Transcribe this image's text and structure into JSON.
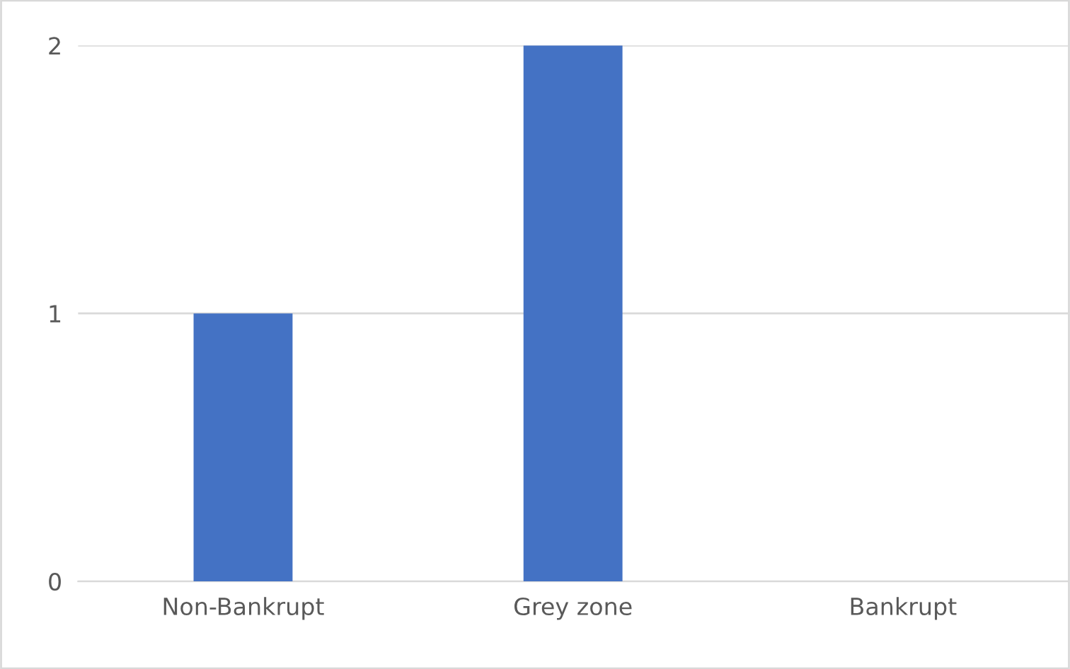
{
  "chart_data": {
    "type": "bar",
    "categories": [
      "Non-Bankrupt",
      "Grey zone",
      "Bankrupt"
    ],
    "values": [
      1,
      2,
      0
    ],
    "color": "#4472c4",
    "ylim": [
      0,
      2
    ],
    "yticks": [
      0,
      1,
      2
    ],
    "grid": "y"
  }
}
